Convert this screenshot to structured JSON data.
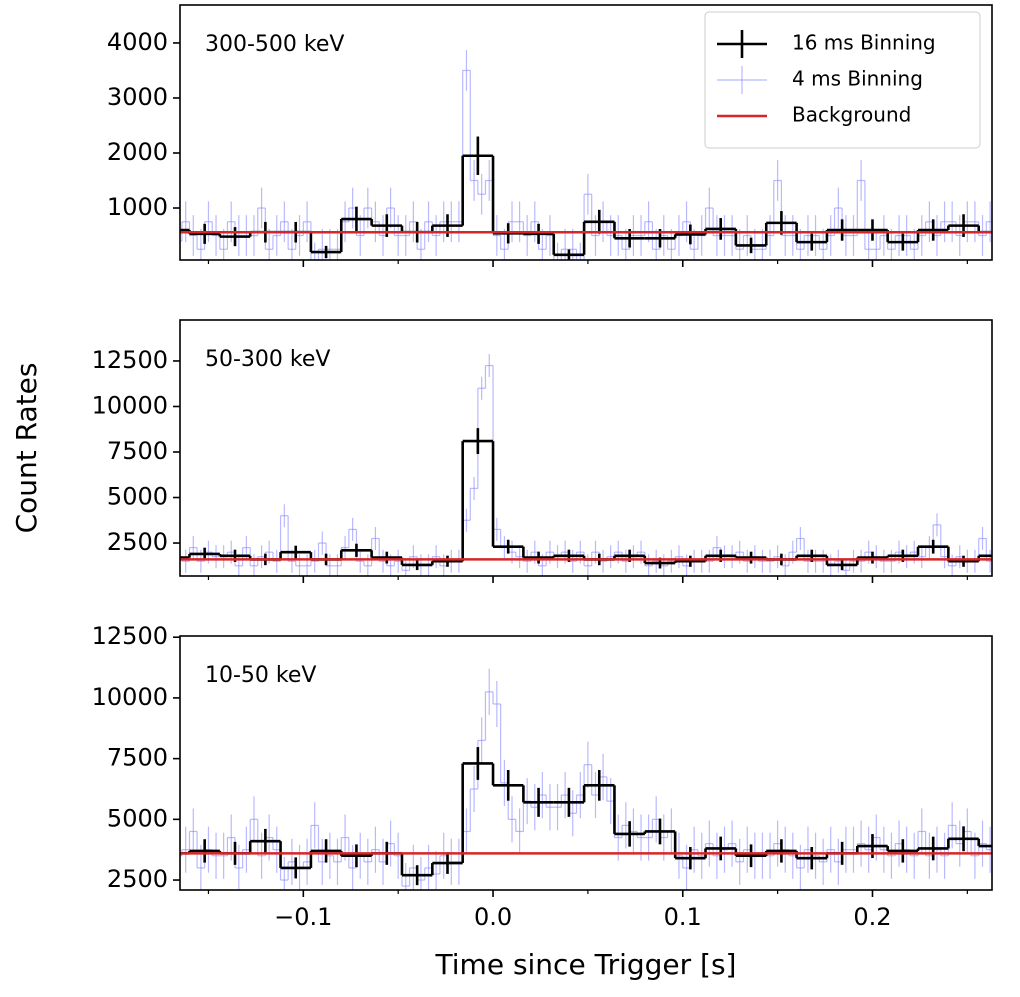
{
  "chart_data": [
    {
      "type": "step",
      "annotation": "300-500 keV",
      "xlim": [
        -0.165,
        0.263
      ],
      "xticks": [
        -0.1,
        0,
        0.1,
        0.2
      ],
      "xminorticks": [
        -0.15,
        -0.05,
        0.05,
        0.15,
        0.25
      ],
      "ylim": [
        55,
        4690
      ],
      "yticks": [
        1000,
        2000,
        3000,
        4000
      ],
      "legend": "upper right",
      "series": [
        {
          "name": "16 ms Binning",
          "color": "#000000",
          "x": [
            -0.168,
            -0.152,
            -0.136,
            -0.12,
            -0.104,
            -0.088,
            -0.072,
            -0.056,
            -0.04,
            -0.024,
            -0.008,
            0.008,
            0.024,
            0.04,
            0.056,
            0.072,
            0.088,
            0.104,
            0.12,
            0.136,
            0.152,
            0.168,
            0.184,
            0.2,
            0.216,
            0.232,
            0.248,
            0.264
          ],
          "values": [
            600,
            530,
            480,
            560,
            560,
            200,
            800,
            680,
            560,
            680,
            1950,
            540,
            530,
            150,
            750,
            450,
            450,
            520,
            620,
            320,
            730,
            380,
            600,
            600,
            380,
            600,
            680,
            560
          ],
          "errors": [
            194,
            182,
            173,
            187,
            187,
            112,
            224,
            206,
            187,
            206,
            349,
            184,
            182,
            97,
            217,
            168,
            168,
            180,
            197,
            141,
            214,
            154,
            194,
            194,
            154,
            194,
            206,
            187
          ]
        },
        {
          "name": "4 ms Binning",
          "color": "#8080ff",
          "x": [
            -0.174,
            -0.17,
            -0.166,
            -0.162,
            -0.158,
            -0.154,
            -0.15,
            -0.146,
            -0.142,
            -0.138,
            -0.134,
            -0.13,
            -0.126,
            -0.122,
            -0.118,
            -0.114,
            -0.11,
            -0.106,
            -0.102,
            -0.098,
            -0.094,
            -0.09,
            -0.086,
            -0.082,
            -0.078,
            -0.074,
            -0.07,
            -0.066,
            -0.062,
            -0.058,
            -0.054,
            -0.05,
            -0.046,
            -0.042,
            -0.038,
            -0.034,
            -0.03,
            -0.026,
            -0.022,
            -0.018,
            -0.014,
            -0.01,
            -0.006,
            -0.002,
            0.002,
            0.006,
            0.01,
            0.014,
            0.018,
            0.022,
            0.026,
            0.03,
            0.034,
            0.038,
            0.042,
            0.046,
            0.05,
            0.054,
            0.058,
            0.062,
            0.066,
            0.07,
            0.074,
            0.078,
            0.082,
            0.086,
            0.09,
            0.094,
            0.098,
            0.102,
            0.106,
            0.11,
            0.114,
            0.118,
            0.122,
            0.126,
            0.13,
            0.134,
            0.138,
            0.142,
            0.146,
            0.15,
            0.154,
            0.158,
            0.162,
            0.166,
            0.17,
            0.174,
            0.178,
            0.182,
            0.186,
            0.19,
            0.194,
            0.198,
            0.202,
            0.206,
            0.21,
            0.214,
            0.218,
            0.222,
            0.226,
            0.23,
            0.234,
            0.238,
            0.242,
            0.246,
            0.25,
            0.254,
            0.258,
            0.262,
            0.266,
            0.27
          ],
          "values": [
            500,
            750,
            400,
            750,
            500,
            250,
            750,
            500,
            250,
            750,
            500,
            500,
            500,
            1000,
            250,
            500,
            750,
            250,
            500,
            750,
            0,
            250,
            250,
            250,
            750,
            1000,
            500,
            1000,
            750,
            500,
            1000,
            500,
            500,
            750,
            250,
            750,
            500,
            750,
            750,
            750,
            3500,
            1500,
            1250,
            1500,
            500,
            250,
            750,
            750,
            500,
            750,
            250,
            500,
            0,
            250,
            250,
            0,
            1250,
            500,
            750,
            500,
            500,
            250,
            500,
            500,
            750,
            250,
            500,
            250,
            500,
            750,
            250,
            500,
            1000,
            500,
            500,
            500,
            250,
            500,
            250,
            250,
            500,
            1500,
            500,
            500,
            250,
            500,
            500,
            250,
            500,
            1000,
            500,
            500,
            1500,
            250,
            250,
            500,
            250,
            500,
            500,
            250,
            500,
            750,
            500,
            750,
            750,
            500,
            750,
            750,
            500,
            750,
            500,
            500
          ],
          "error": 370
        },
        {
          "name": "Background",
          "color": "#d62728",
          "value": 560
        }
      ]
    },
    {
      "type": "step",
      "annotation": "50-300 keV",
      "ylabel": "Count Rates",
      "xlim": [
        -0.165,
        0.263
      ],
      "xticks": [
        -0.1,
        0,
        0.1,
        0.2
      ],
      "xminorticks": [
        -0.15,
        -0.05,
        0.05,
        0.15,
        0.25
      ],
      "ylim": [
        690,
        14750
      ],
      "yticks": [
        2500,
        5000,
        7500,
        10000,
        12500
      ],
      "series": [
        {
          "color": "#000000",
          "x": [
            -0.168,
            -0.152,
            -0.136,
            -0.12,
            -0.104,
            -0.088,
            -0.072,
            -0.056,
            -0.04,
            -0.024,
            -0.008,
            0.008,
            0.024,
            0.04,
            0.056,
            0.072,
            0.088,
            0.104,
            0.12,
            0.136,
            0.152,
            0.168,
            0.184,
            0.2,
            0.216,
            0.232,
            0.248,
            0.264
          ],
          "values": [
            1700,
            1900,
            1800,
            1600,
            2000,
            1600,
            2100,
            1700,
            1300,
            1500,
            8100,
            2300,
            1700,
            1800,
            1600,
            1800,
            1400,
            1500,
            1800,
            1700,
            1600,
            1800,
            1300,
            1700,
            1800,
            2300,
            1500,
            1800
          ],
          "errors": [
            326,
            345,
            335,
            316,
            354,
            316,
            362,
            326,
            285,
            306,
            711,
            379,
            326,
            335,
            316,
            335,
            296,
            306,
            335,
            326,
            316,
            335,
            285,
            326,
            335,
            379,
            306,
            335
          ]
        },
        {
          "color": "#8080ff",
          "x": [
            -0.174,
            -0.17,
            -0.166,
            -0.162,
            -0.158,
            -0.154,
            -0.15,
            -0.146,
            -0.142,
            -0.138,
            -0.134,
            -0.13,
            -0.126,
            -0.122,
            -0.118,
            -0.114,
            -0.11,
            -0.106,
            -0.102,
            -0.098,
            -0.094,
            -0.09,
            -0.086,
            -0.082,
            -0.078,
            -0.074,
            -0.07,
            -0.066,
            -0.062,
            -0.058,
            -0.054,
            -0.05,
            -0.046,
            -0.042,
            -0.038,
            -0.034,
            -0.03,
            -0.026,
            -0.022,
            -0.018,
            -0.014,
            -0.01,
            -0.006,
            -0.002,
            0.002,
            0.006,
            0.01,
            0.014,
            0.018,
            0.022,
            0.026,
            0.03,
            0.034,
            0.038,
            0.042,
            0.046,
            0.05,
            0.054,
            0.058,
            0.062,
            0.066,
            0.07,
            0.074,
            0.078,
            0.082,
            0.086,
            0.09,
            0.094,
            0.098,
            0.102,
            0.106,
            0.11,
            0.114,
            0.118,
            0.122,
            0.126,
            0.13,
            0.134,
            0.138,
            0.142,
            0.146,
            0.15,
            0.154,
            0.158,
            0.162,
            0.166,
            0.17,
            0.174,
            0.178,
            0.182,
            0.186,
            0.19,
            0.194,
            0.198,
            0.202,
            0.206,
            0.21,
            0.214,
            0.218,
            0.222,
            0.226,
            0.23,
            0.234,
            0.238,
            0.242,
            0.246,
            0.25,
            0.254,
            0.258,
            0.262,
            0.266,
            0.27
          ],
          "values": [
            1500,
            2000,
            1750,
            1500,
            2250,
            1500,
            2000,
            1750,
            1750,
            2000,
            1250,
            2250,
            1250,
            1750,
            2000,
            1500,
            4000,
            1500,
            1250,
            1250,
            1500,
            2500,
            1250,
            1250,
            2250,
            3250,
            1500,
            1250,
            2750,
            1500,
            1250,
            1500,
            1000,
            1750,
            1250,
            1250,
            1750,
            1250,
            1500,
            1500,
            3750,
            5500,
            11000,
            12250,
            3250,
            2250,
            2000,
            1750,
            1500,
            2000,
            1250,
            2000,
            1750,
            2000,
            1500,
            2000,
            1250,
            2000,
            1500,
            1750,
            2000,
            1500,
            1750,
            2000,
            1250,
            1500,
            1250,
            1500,
            1750,
            1250,
            1500,
            1500,
            1500,
            2250,
            1750,
            1750,
            2000,
            1500,
            1750,
            1500,
            1500,
            1750,
            1250,
            2000,
            2750,
            1500,
            1500,
            1500,
            1250,
            1500,
            1000,
            1500,
            1500,
            2000,
            1750,
            1500,
            1500,
            2000,
            1750,
            2000,
            1750,
            2250,
            3500,
            1750,
            1250,
            1750,
            1500,
            1500,
            2750,
            1500,
            1500,
            1500
          ],
          "error": 630
        },
        {
          "color": "#d62728",
          "value": 1600
        }
      ]
    },
    {
      "type": "step",
      "annotation": "10-50 keV",
      "xlabel": "Time since Trigger [s]",
      "xlim": [
        -0.165,
        0.263
      ],
      "xticks": [
        {
          "value": -0.1,
          "label": "−0.1"
        },
        {
          "value": 0,
          "label": "0.0"
        },
        0.1,
        0.2
      ],
      "xminorticks": [
        -0.15,
        -0.05,
        0.05,
        0.15,
        0.25
      ],
      "ylim": [
        2090,
        12550
      ],
      "yticks": [
        2500,
        5000,
        7500,
        10000,
        12500
      ],
      "series": [
        {
          "color": "#000000",
          "x": [
            -0.168,
            -0.152,
            -0.136,
            -0.12,
            -0.104,
            -0.088,
            -0.072,
            -0.056,
            -0.04,
            -0.024,
            -0.008,
            0.008,
            0.024,
            0.04,
            0.056,
            0.072,
            0.088,
            0.104,
            0.12,
            0.136,
            0.152,
            0.168,
            0.184,
            0.2,
            0.216,
            0.232,
            0.248,
            0.264
          ],
          "values": [
            3600,
            3700,
            3600,
            4100,
            3000,
            3700,
            3500,
            3600,
            2700,
            3200,
            7300,
            6400,
            5700,
            5700,
            6400,
            4400,
            4500,
            3400,
            3800,
            3500,
            3700,
            3400,
            3600,
            3900,
            3700,
            3800,
            4200,
            3900
          ],
          "errors": [
            474,
            481,
            474,
            506,
            433,
            481,
            468,
            474,
            411,
            447,
            675,
            632,
            597,
            597,
            632,
            524,
            530,
            461,
            487,
            468,
            481,
            461,
            474,
            494,
            481,
            487,
            512,
            494
          ]
        },
        {
          "color": "#8080ff",
          "x": [
            -0.174,
            -0.17,
            -0.166,
            -0.162,
            -0.158,
            -0.154,
            -0.15,
            -0.146,
            -0.142,
            -0.138,
            -0.134,
            -0.13,
            -0.126,
            -0.122,
            -0.118,
            -0.114,
            -0.11,
            -0.106,
            -0.102,
            -0.098,
            -0.094,
            -0.09,
            -0.086,
            -0.082,
            -0.078,
            -0.074,
            -0.07,
            -0.066,
            -0.062,
            -0.058,
            -0.054,
            -0.05,
            -0.046,
            -0.042,
            -0.038,
            -0.034,
            -0.03,
            -0.026,
            -0.022,
            -0.018,
            -0.014,
            -0.01,
            -0.006,
            -0.002,
            0.002,
            0.006,
            0.01,
            0.014,
            0.018,
            0.022,
            0.026,
            0.03,
            0.034,
            0.038,
            0.042,
            0.046,
            0.05,
            0.054,
            0.058,
            0.062,
            0.066,
            0.07,
            0.074,
            0.078,
            0.082,
            0.086,
            0.09,
            0.094,
            0.098,
            0.102,
            0.106,
            0.11,
            0.114,
            0.118,
            0.122,
            0.126,
            0.13,
            0.134,
            0.138,
            0.142,
            0.146,
            0.15,
            0.154,
            0.158,
            0.162,
            0.166,
            0.17,
            0.174,
            0.178,
            0.182,
            0.186,
            0.19,
            0.194,
            0.198,
            0.202,
            0.206,
            0.21,
            0.214,
            0.218,
            0.222,
            0.226,
            0.23,
            0.234,
            0.238,
            0.242,
            0.246,
            0.25,
            0.254,
            0.258,
            0.262,
            0.266,
            0.27
          ],
          "values": [
            3250,
            4000,
            3500,
            3750,
            4500,
            3000,
            3750,
            3500,
            3500,
            4250,
            3000,
            3750,
            5000,
            3500,
            4250,
            3750,
            2500,
            3250,
            3000,
            3250,
            4750,
            3250,
            3500,
            3250,
            4250,
            3000,
            3500,
            3250,
            3750,
            3250,
            4000,
            3500,
            2250,
            3000,
            2500,
            3000,
            2750,
            3500,
            3250,
            3250,
            4500,
            6250,
            8250,
            10250,
            9750,
            6500,
            5000,
            4500,
            5750,
            5500,
            6000,
            5500,
            5500,
            6000,
            5250,
            6000,
            7250,
            6000,
            6750,
            5750,
            4250,
            4750,
            4500,
            4250,
            4250,
            5000,
            4250,
            4500,
            3500,
            3000,
            3750,
            3500,
            4000,
            3500,
            3750,
            4000,
            3250,
            3750,
            3500,
            3500,
            3500,
            4000,
            3750,
            3500,
            3000,
            3750,
            3500,
            3250,
            3750,
            3250,
            3750,
            3750,
            4000,
            3750,
            4250,
            3750,
            3500,
            4000,
            3750,
            3500,
            4500,
            3500,
            3750,
            3500,
            4750,
            4000,
            4500,
            3500,
            4000,
            3750,
            4250,
            3750
          ],
          "error": 950
        },
        {
          "color": "#d62728",
          "value": 3600
        }
      ]
    }
  ]
}
